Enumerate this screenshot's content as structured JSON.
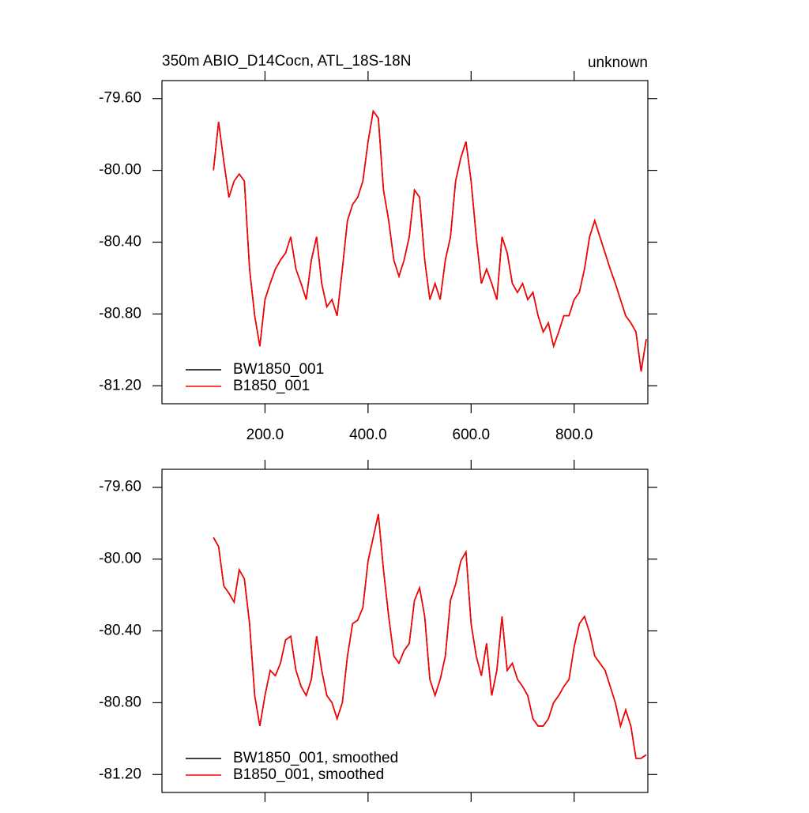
{
  "chart_data": [
    {
      "type": "line",
      "title": "350m ABIO_D14Cocn, ATL_18S-18N",
      "subtitle": "unknown",
      "legend": "lower left",
      "xlim": [
        0,
        943
      ],
      "ylim": [
        -81.3,
        -79.5
      ],
      "xticks": [
        {
          "value": 200,
          "label": "200.0"
        },
        {
          "value": 400,
          "label": "400.0"
        },
        {
          "value": 600,
          "label": "600.0"
        },
        {
          "value": 800,
          "label": "800.0"
        }
      ],
      "yticks": [
        {
          "value": -79.6,
          "label": "-79.60"
        },
        {
          "value": -80.0,
          "label": "-80.00"
        },
        {
          "value": -80.4,
          "label": "-80.40"
        },
        {
          "value": -80.8,
          "label": "-80.80"
        },
        {
          "value": -81.2,
          "label": "-81.20"
        }
      ],
      "x": [
        100,
        110,
        120,
        130,
        140,
        150,
        160,
        170,
        180,
        190,
        200,
        210,
        220,
        230,
        240,
        250,
        260,
        270,
        280,
        290,
        300,
        310,
        320,
        330,
        340,
        350,
        360,
        370,
        380,
        390,
        400,
        410,
        420,
        430,
        440,
        450,
        460,
        470,
        480,
        490,
        500,
        510,
        520,
        530,
        540,
        550,
        560,
        570,
        580,
        590,
        600,
        610,
        620,
        630,
        640,
        650,
        660,
        670,
        680,
        690,
        700,
        710,
        720,
        730,
        740,
        750,
        760,
        770,
        780,
        790,
        800,
        810,
        820,
        830,
        840,
        850,
        860,
        870,
        880,
        890,
        900,
        910,
        920,
        930,
        940
      ],
      "series": [
        {
          "name": "BW1850_001",
          "color": "#000000",
          "values": [
            -80.0,
            -79.73,
            -79.95,
            -80.15,
            -80.06,
            -80.02,
            -80.06,
            -80.55,
            -80.81,
            -80.98,
            -80.72,
            -80.63,
            -80.55,
            -80.5,
            -80.46,
            -80.37,
            -80.55,
            -80.63,
            -80.72,
            -80.5,
            -80.37,
            -80.63,
            -80.76,
            -80.72,
            -80.81,
            -80.55,
            -80.28,
            -80.19,
            -80.15,
            -80.06,
            -79.84,
            -79.67,
            -79.71,
            -80.11,
            -80.28,
            -80.5,
            -80.59,
            -80.5,
            -80.37,
            -80.11,
            -80.15,
            -80.5,
            -80.72,
            -80.63,
            -80.72,
            -80.5,
            -80.37,
            -80.06,
            -79.93,
            -79.84,
            -80.06,
            -80.37,
            -80.63,
            -80.55,
            -80.63,
            -80.72,
            -80.37,
            -80.46,
            -80.63,
            -80.68,
            -80.63,
            -80.72,
            -80.68,
            -80.81,
            -80.9,
            -80.85,
            -80.98,
            -80.9,
            -80.81,
            -80.81,
            -80.72,
            -80.68,
            -80.55,
            -80.37,
            -80.28,
            -80.37,
            -80.46,
            -80.55,
            -80.63,
            -80.72,
            -80.81,
            -80.85,
            -80.9,
            -81.12,
            -80.94
          ]
        },
        {
          "name": "B1850_001",
          "color": "#ff0000",
          "values": [
            -80.0,
            -79.73,
            -79.95,
            -80.15,
            -80.06,
            -80.02,
            -80.06,
            -80.55,
            -80.81,
            -80.98,
            -80.72,
            -80.63,
            -80.55,
            -80.5,
            -80.46,
            -80.37,
            -80.55,
            -80.63,
            -80.72,
            -80.5,
            -80.37,
            -80.63,
            -80.76,
            -80.72,
            -80.81,
            -80.55,
            -80.28,
            -80.19,
            -80.15,
            -80.06,
            -79.84,
            -79.67,
            -79.71,
            -80.11,
            -80.28,
            -80.5,
            -80.59,
            -80.5,
            -80.37,
            -80.11,
            -80.15,
            -80.5,
            -80.72,
            -80.63,
            -80.72,
            -80.5,
            -80.37,
            -80.06,
            -79.93,
            -79.84,
            -80.06,
            -80.37,
            -80.63,
            -80.55,
            -80.63,
            -80.72,
            -80.37,
            -80.46,
            -80.63,
            -80.68,
            -80.63,
            -80.72,
            -80.68,
            -80.81,
            -80.9,
            -80.85,
            -80.98,
            -80.9,
            -80.81,
            -80.81,
            -80.72,
            -80.68,
            -80.55,
            -80.37,
            -80.28,
            -80.37,
            -80.46,
            -80.55,
            -80.63,
            -80.72,
            -80.81,
            -80.85,
            -80.9,
            -81.12,
            -80.94
          ]
        }
      ]
    },
    {
      "type": "line",
      "legend": "lower left",
      "xlim": [
        0,
        943
      ],
      "ylim": [
        -81.3,
        -79.5
      ],
      "yticks": [
        {
          "value": -79.6,
          "label": "-79.60"
        },
        {
          "value": -80.0,
          "label": "-80.00"
        },
        {
          "value": -80.4,
          "label": "-80.40"
        },
        {
          "value": -80.8,
          "label": "-80.80"
        },
        {
          "value": -81.2,
          "label": "-81.20"
        }
      ],
      "x": [
        100,
        110,
        120,
        130,
        140,
        150,
        160,
        170,
        180,
        190,
        200,
        210,
        220,
        230,
        240,
        250,
        260,
        270,
        280,
        290,
        300,
        310,
        320,
        330,
        340,
        350,
        360,
        370,
        380,
        390,
        400,
        410,
        420,
        430,
        440,
        450,
        460,
        470,
        480,
        490,
        500,
        510,
        520,
        530,
        540,
        550,
        560,
        570,
        580,
        590,
        600,
        610,
        620,
        630,
        640,
        650,
        660,
        670,
        680,
        690,
        700,
        710,
        720,
        730,
        740,
        750,
        760,
        770,
        780,
        790,
        800,
        810,
        820,
        830,
        840,
        850,
        860,
        870,
        880,
        890,
        900,
        910,
        920,
        930,
        940
      ],
      "series": [
        {
          "name": "BW1850_001, smoothed",
          "color": "#000000",
          "values": [
            -79.88,
            -79.93,
            -80.15,
            -80.19,
            -80.24,
            -80.06,
            -80.11,
            -80.36,
            -80.76,
            -80.93,
            -80.76,
            -80.62,
            -80.65,
            -80.58,
            -80.45,
            -80.43,
            -80.62,
            -80.71,
            -80.76,
            -80.67,
            -80.43,
            -80.62,
            -80.76,
            -80.8,
            -80.89,
            -80.8,
            -80.54,
            -80.36,
            -80.34,
            -80.27,
            -80.01,
            -79.88,
            -79.75,
            -80.06,
            -80.32,
            -80.54,
            -80.58,
            -80.51,
            -80.47,
            -80.23,
            -80.16,
            -80.32,
            -80.67,
            -80.76,
            -80.67,
            -80.54,
            -80.23,
            -80.14,
            -80.01,
            -79.96,
            -80.36,
            -80.54,
            -80.65,
            -80.47,
            -80.76,
            -80.62,
            -80.32,
            -80.62,
            -80.58,
            -80.67,
            -80.71,
            -80.76,
            -80.89,
            -80.93,
            -80.93,
            -80.89,
            -80.8,
            -80.76,
            -80.71,
            -80.67,
            -80.49,
            -80.36,
            -80.32,
            -80.41,
            -80.54,
            -80.58,
            -80.62,
            -80.71,
            -80.8,
            -80.93,
            -80.84,
            -80.93,
            -81.11,
            -81.11,
            -81.09
          ]
        },
        {
          "name": "B1850_001, smoothed",
          "color": "#ff0000",
          "values": [
            -79.88,
            -79.93,
            -80.15,
            -80.19,
            -80.24,
            -80.06,
            -80.11,
            -80.36,
            -80.76,
            -80.93,
            -80.76,
            -80.62,
            -80.65,
            -80.58,
            -80.45,
            -80.43,
            -80.62,
            -80.71,
            -80.76,
            -80.67,
            -80.43,
            -80.62,
            -80.76,
            -80.8,
            -80.89,
            -80.8,
            -80.54,
            -80.36,
            -80.34,
            -80.27,
            -80.01,
            -79.88,
            -79.75,
            -80.06,
            -80.32,
            -80.54,
            -80.58,
            -80.51,
            -80.47,
            -80.23,
            -80.16,
            -80.32,
            -80.67,
            -80.76,
            -80.67,
            -80.54,
            -80.23,
            -80.14,
            -80.01,
            -79.96,
            -80.36,
            -80.54,
            -80.65,
            -80.47,
            -80.76,
            -80.62,
            -80.32,
            -80.62,
            -80.58,
            -80.67,
            -80.71,
            -80.76,
            -80.89,
            -80.93,
            -80.93,
            -80.89,
            -80.8,
            -80.76,
            -80.71,
            -80.67,
            -80.49,
            -80.36,
            -80.32,
            -80.41,
            -80.54,
            -80.58,
            -80.62,
            -80.71,
            -80.8,
            -80.93,
            -80.84,
            -80.93,
            -81.11,
            -81.11,
            -81.09
          ]
        }
      ]
    }
  ]
}
